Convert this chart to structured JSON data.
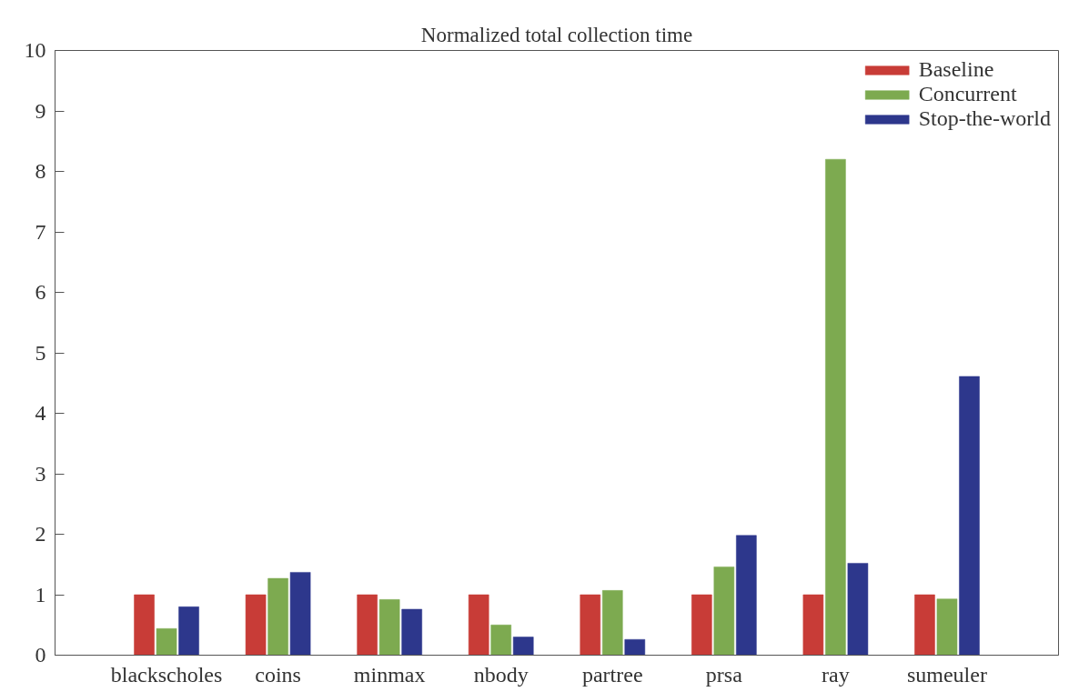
{
  "chart_data": {
    "type": "bar",
    "title": "Normalized total collection time",
    "categories": [
      "blackscholes",
      "coins",
      "minmax",
      "nbody",
      "partree",
      "prsa",
      "ray",
      "sumeuler"
    ],
    "series": [
      {
        "name": "Baseline",
        "color": "#c83c37",
        "values": [
          1.0,
          1.0,
          1.0,
          1.0,
          1.0,
          1.0,
          1.0,
          1.0
        ]
      },
      {
        "name": "Concurrent",
        "color": "#7daa50",
        "values": [
          0.44,
          1.27,
          0.92,
          0.5,
          1.07,
          1.46,
          8.2,
          0.93
        ]
      },
      {
        "name": "Stop-the-world",
        "color": "#2d378c",
        "values": [
          0.8,
          1.37,
          0.76,
          0.3,
          0.26,
          1.98,
          1.52,
          4.61
        ]
      }
    ],
    "ylim": [
      0,
      10
    ],
    "yticks": [
      0,
      1,
      2,
      3,
      4,
      5,
      6,
      7,
      8,
      9,
      10
    ],
    "legend": "top right",
    "grid": false
  }
}
